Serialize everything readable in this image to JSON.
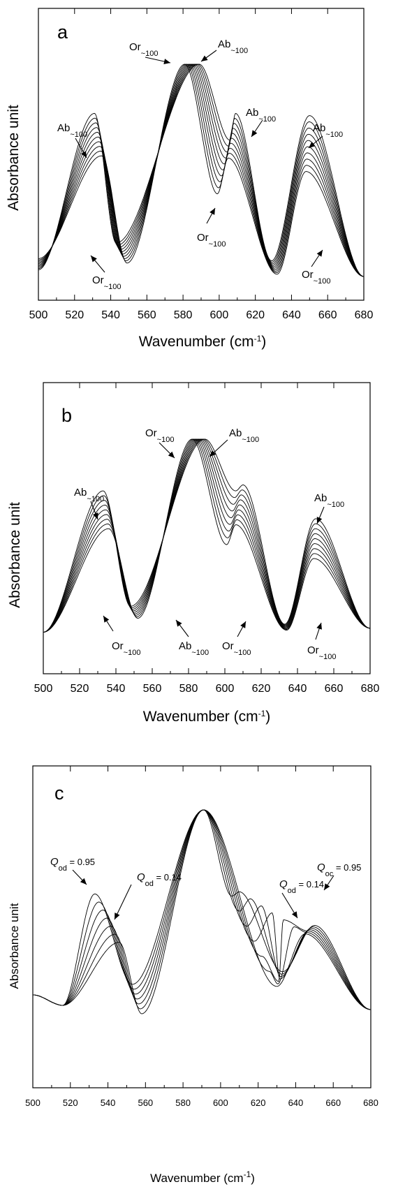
{
  "chart_data": [
    {
      "panel": "a",
      "type": "line",
      "xlabel": "Wavenumber (cm-1)",
      "ylabel": "Absorbance unit",
      "xlim": [
        500,
        680
      ],
      "xticks": [
        500,
        520,
        540,
        560,
        580,
        600,
        620,
        640,
        660,
        680
      ],
      "series_count": 10,
      "series": [
        {
          "label_end": "Or ~100",
          "peaks": [
            {
              "x": 535,
              "y": 0.59
            },
            {
              "x": 581,
              "y": 1.0
            },
            {
              "x": 605,
              "y": 0.58
            },
            {
              "x": 648,
              "y": 0.52
            }
          ],
          "minima": [
            {
              "x": 549,
              "y": 0.11
            },
            {
              "x": 599,
              "y": 0.42
            },
            {
              "x": 632,
              "y": 0.06
            }
          ],
          "start": 0.13
        },
        {
          "label_end": "Ab ~100",
          "peaks": [
            {
              "x": 531,
              "y": 0.78
            },
            {
              "x": 589,
              "y": 1.0
            },
            {
              "x": 609,
              "y": 0.78
            },
            {
              "x": 650,
              "y": 0.77
            }
          ],
          "minima": [
            {
              "x": 543,
              "y": 0.2
            },
            {
              "x": 606,
              "y": 0.66
            },
            {
              "x": 629,
              "y": 0.12
            }
          ],
          "start": 0.08
        }
      ],
      "annotations": [
        {
          "text": "Or",
          "sub": "~100"
        },
        {
          "text": "Ab",
          "sub": "~100"
        },
        {
          "text": "Ab",
          "sub": "~100"
        },
        {
          "text": "Ab",
          "sub": "~100"
        },
        {
          "text": "Ab",
          "sub": "~100"
        },
        {
          "text": "Or",
          "sub": "~100"
        },
        {
          "text": "Or",
          "sub": "~100"
        },
        {
          "text": "Or",
          "sub": "~100"
        }
      ]
    },
    {
      "panel": "b",
      "type": "line",
      "xlabel": "Wavenumber (cm-1)",
      "ylabel": "Absorbance unit",
      "xlim": [
        500,
        680
      ],
      "xticks": [
        500,
        520,
        540,
        560,
        580,
        600,
        620,
        640,
        660,
        680
      ],
      "series_count": 9,
      "series": [
        {
          "label_end": "Or ~100",
          "peaks": [
            {
              "x": 536,
              "y": 0.55
            },
            {
              "x": 582,
              "y": 1.0
            },
            {
              "x": 606,
              "y": 0.57
            },
            {
              "x": 649,
              "y": 0.4
            }
          ],
          "minima": [
            {
              "x": 552,
              "y": 0.1
            },
            {
              "x": 601,
              "y": 0.47
            },
            {
              "x": 634,
              "y": 0.04
            }
          ],
          "start": 0.03
        },
        {
          "label_end": "Ab ~100",
          "peaks": [
            {
              "x": 533,
              "y": 0.74
            },
            {
              "x": 589,
              "y": 1.0
            },
            {
              "x": 610,
              "y": 0.77
            },
            {
              "x": 650,
              "y": 0.6
            }
          ],
          "minima": [
            {
              "x": 548,
              "y": 0.16
            },
            {
              "x": 606,
              "y": 0.74
            },
            {
              "x": 633,
              "y": 0.07
            }
          ],
          "start": 0.03
        }
      ],
      "annotations": [
        {
          "text": "Or",
          "sub": "~100"
        },
        {
          "text": "Ab",
          "sub": "~100"
        },
        {
          "text": "Ab",
          "sub": "~100"
        },
        {
          "text": "Ab",
          "sub": "~100"
        },
        {
          "text": "Or",
          "sub": "~100"
        },
        {
          "text": "Ab",
          "sub": "~100"
        },
        {
          "text": "Or",
          "sub": "~100"
        },
        {
          "text": "Or",
          "sub": "~100"
        }
      ]
    },
    {
      "panel": "c",
      "type": "line",
      "xlabel": "Wavenumber (cm-1)",
      "ylabel": "Absorbance unit",
      "xlim": [
        500,
        680
      ],
      "xticks": [
        500,
        520,
        540,
        560,
        580,
        600,
        620,
        640,
        660,
        680
      ],
      "series_count": 7,
      "series": [
        {
          "label_end": "Q od = 0.95",
          "peaks": [
            {
              "x": 533,
              "y": 0.6
            },
            {
              "x": 591,
              "y": 1.0
            },
            {
              "x": 610,
              "y": 0.61
            },
            {
              "x": 650,
              "y": 0.45
            }
          ],
          "minima": [
            {
              "x": 516,
              "y": 0.07
            },
            {
              "x": 553,
              "y": 0.17
            },
            {
              "x": 606,
              "y": 0.59
            },
            {
              "x": 633,
              "y": 0.23
            }
          ],
          "start": 0.12
        },
        {
          "label_end": "Q od = 0.14",
          "peaks": [
            {
              "x": 546,
              "y": 0.37
            },
            {
              "x": 591,
              "y": 1.0
            },
            {
              "x": 645,
              "y": 0.41
            }
          ],
          "minima": [
            {
              "x": 516,
              "y": 0.07
            },
            {
              "x": 558,
              "y": 0.03
            },
            {
              "x": 630,
              "y": 0.16
            }
          ],
          "start": 0.12
        }
      ],
      "annotations": [
        {
          "text": "Q",
          "sub": "od",
          "value": "= 0.95"
        },
        {
          "text": "Q",
          "sub": "od",
          "value": "= 0.14"
        },
        {
          "text": "Q",
          "sub": "od",
          "value": "= 0.14"
        },
        {
          "text": "Q",
          "sub": "oc",
          "value": "= 0.95"
        }
      ]
    }
  ]
}
